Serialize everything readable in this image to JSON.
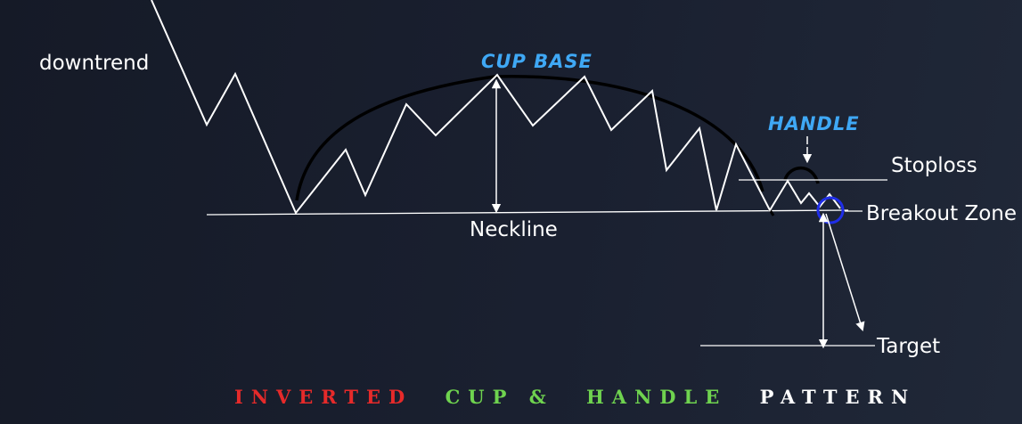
{
  "labels": {
    "downtrend": "downtrend",
    "cup_base": "CUP  BASE",
    "handle": "HANDLE",
    "stoploss": "Stoploss",
    "breakout_zone": "Breakout  Zone",
    "neckline": "Neckline",
    "target": "Target"
  },
  "title": {
    "part1": "INVERTED",
    "part2": "CUP &",
    "part3": "HANDLE",
    "part4": "PATTERN"
  },
  "colors": {
    "background": "#1a2030",
    "line": "#ffffff",
    "cup_arc": "#000000",
    "label_blue": "#3fa8f5",
    "breakout_circle": "#1f2ee8",
    "title_red": "#e62a2a",
    "title_green": "#6fd34f",
    "title_white": "#ffffff"
  }
}
